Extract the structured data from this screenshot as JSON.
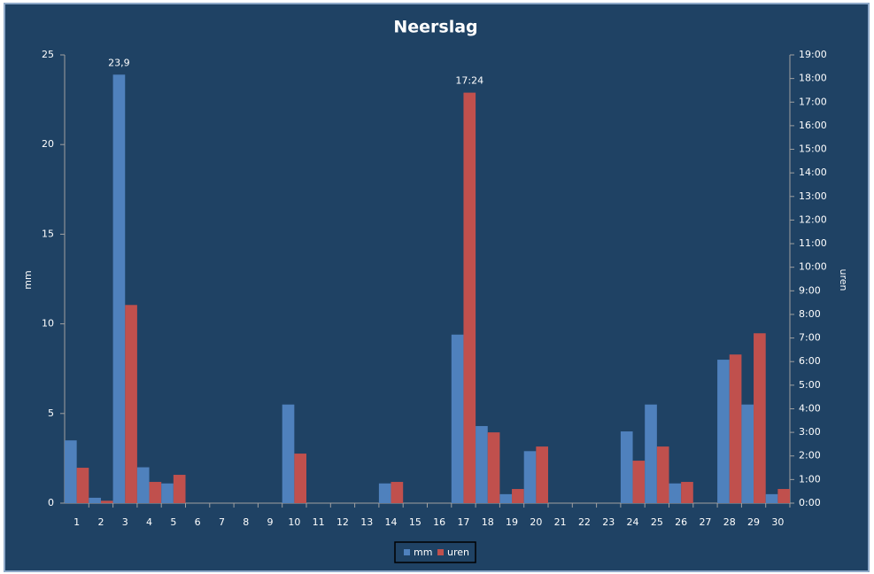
{
  "chart_data": {
    "type": "bar",
    "title": "Neerslag",
    "categories": [
      "1",
      "2",
      "3",
      "4",
      "5",
      "6",
      "7",
      "8",
      "9",
      "10",
      "11",
      "12",
      "13",
      "14",
      "15",
      "16",
      "17",
      "18",
      "19",
      "20",
      "21",
      "22",
      "23",
      "24",
      "25",
      "26",
      "27",
      "28",
      "29",
      "30"
    ],
    "series": [
      {
        "name": "mm",
        "color": "#4f81bd",
        "values": [
          3.5,
          0.3,
          23.9,
          2.0,
          1.1,
          0,
          0,
          0,
          0,
          5.5,
          0,
          0,
          0,
          1.1,
          0,
          0,
          9.4,
          4.3,
          0.5,
          2.9,
          0,
          0,
          0,
          4.0,
          5.5,
          1.1,
          0,
          8.0,
          5.5,
          0.5
        ],
        "value_labels": [
          null,
          null,
          "23,9",
          null,
          null,
          null,
          null,
          null,
          null,
          null,
          null,
          null,
          null,
          null,
          null,
          null,
          null,
          null,
          null,
          null,
          null,
          null,
          null,
          null,
          null,
          null,
          null,
          null,
          null,
          null
        ]
      },
      {
        "name": "uren",
        "color": "#c0504d",
        "axis": "y2",
        "values": [
          1.5,
          0.1,
          8.4,
          0.9,
          1.2,
          0,
          0,
          0,
          0,
          2.1,
          0,
          0,
          0,
          0.9,
          0,
          0,
          17.4,
          3.0,
          0.6,
          2.4,
          0,
          0,
          0,
          1.8,
          2.4,
          0.9,
          0,
          6.3,
          7.2,
          0.6
        ],
        "value_labels": [
          null,
          null,
          null,
          null,
          null,
          null,
          null,
          null,
          null,
          null,
          null,
          null,
          null,
          null,
          null,
          null,
          "17:24",
          null,
          null,
          null,
          null,
          null,
          null,
          null,
          null,
          null,
          null,
          null,
          null,
          null
        ]
      }
    ],
    "ylabel": "mm",
    "y2label": "uren",
    "ylim": [
      0,
      25
    ],
    "yticks": [
      0,
      5,
      10,
      15,
      20,
      25
    ],
    "y2lim": [
      0,
      19
    ],
    "y2ticks": [
      {
        "value": 0,
        "label": "0:00"
      },
      {
        "value": 1,
        "label": "1:00"
      },
      {
        "value": 2,
        "label": "2:00"
      },
      {
        "value": 3,
        "label": "3:00"
      },
      {
        "value": 4,
        "label": "4:00"
      },
      {
        "value": 5,
        "label": "5:00"
      },
      {
        "value": 6,
        "label": "6:00"
      },
      {
        "value": 7,
        "label": "7:00"
      },
      {
        "value": 8,
        "label": "8:00"
      },
      {
        "value": 9,
        "label": "9:00"
      },
      {
        "value": 10,
        "label": "10:00"
      },
      {
        "value": 11,
        "label": "11:00"
      },
      {
        "value": 12,
        "label": "12:00"
      },
      {
        "value": 13,
        "label": "13:00"
      },
      {
        "value": 14,
        "label": "14:00"
      },
      {
        "value": 15,
        "label": "15:00"
      },
      {
        "value": 16,
        "label": "16:00"
      },
      {
        "value": 17,
        "label": "17:00"
      },
      {
        "value": 18,
        "label": "18:00"
      },
      {
        "value": 19,
        "label": "19:00"
      }
    ],
    "legend": "bottom"
  }
}
